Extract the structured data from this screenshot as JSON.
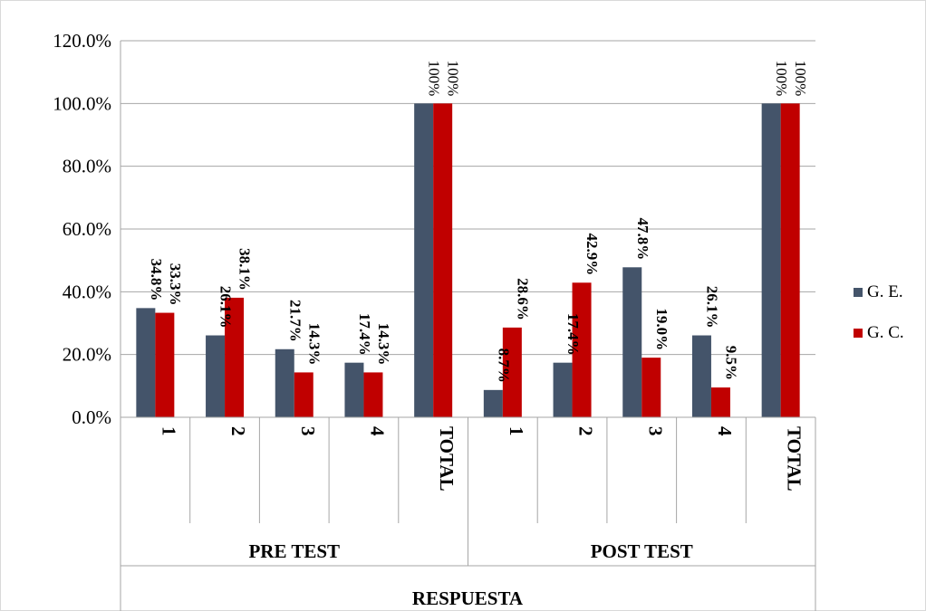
{
  "chart_data": {
    "type": "bar",
    "title": "",
    "xlabel": "RESPUESTA",
    "ylabel": "",
    "ylim": [
      0,
      120
    ],
    "y_ticks": [
      "0.0%",
      "20.0%",
      "40.0%",
      "60.0%",
      "80.0%",
      "100.0%",
      "120.0%"
    ],
    "grid": true,
    "legend_position": "right",
    "groups": [
      {
        "name": "PRE TEST",
        "categories": [
          "1",
          "2",
          "3",
          "4",
          "TOTAL"
        ]
      },
      {
        "name": "POST TEST",
        "categories": [
          "1",
          "2",
          "3",
          "4",
          "TOTAL"
        ]
      }
    ],
    "series": [
      {
        "name": "G. E.",
        "color": "#44546a",
        "values": [
          34.8,
          26.1,
          21.7,
          17.4,
          100,
          8.7,
          17.4,
          47.8,
          26.1,
          100
        ],
        "labels": [
          "34.8%",
          "26.1%",
          "21.7%",
          "17.4%",
          "100%",
          "8.7%",
          "17.4%",
          "47.8%",
          "26.1%",
          "100%"
        ]
      },
      {
        "name": "G. C.",
        "color": "#c00000",
        "values": [
          33.3,
          38.1,
          14.3,
          14.3,
          100,
          28.6,
          42.9,
          19.0,
          9.5,
          100
        ],
        "labels": [
          "33.3%",
          "38.1%",
          "14.3%",
          "14.3%",
          "100%",
          "28.6%",
          "42.9%",
          "19.0%",
          "9.5%",
          "100%"
        ]
      }
    ]
  }
}
